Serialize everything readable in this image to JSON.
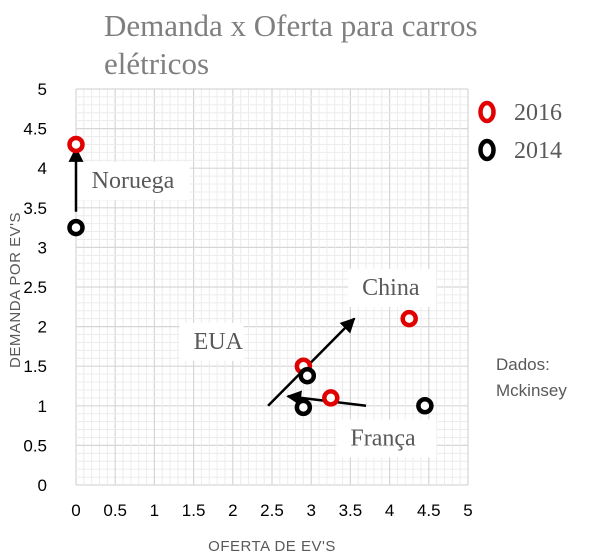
{
  "chart_data": {
    "type": "scatter",
    "title": [
      "Demanda x Oferta para carros",
      "elétricos"
    ],
    "xlabel": "OFERTA DE EV'S",
    "ylabel": "DEMANDA POR EV'S",
    "xlim": [
      0,
      5
    ],
    "ylim": [
      0,
      5
    ],
    "xticks": [
      "0",
      "0.5",
      "1",
      "1.5",
      "2",
      "2.5",
      "3",
      "3.5",
      "4",
      "4.5",
      "5"
    ],
    "yticks": [
      "0",
      "0.5",
      "1",
      "1.5",
      "2",
      "2.5",
      "3",
      "3.5",
      "4",
      "4.5",
      "5"
    ],
    "grid": true,
    "legend_position": "top-right",
    "series": [
      {
        "name": "2016",
        "color": "#e00000",
        "points": [
          {
            "x": 0.0,
            "y": 4.3
          },
          {
            "x": 2.9,
            "y": 1.5
          },
          {
            "x": 3.25,
            "y": 1.1
          },
          {
            "x": 4.25,
            "y": 2.1
          }
        ]
      },
      {
        "name": "2014",
        "color": "#000000",
        "points": [
          {
            "x": 0.0,
            "y": 3.25
          },
          {
            "x": 2.95,
            "y": 1.38
          },
          {
            "x": 2.9,
            "y": 0.98
          },
          {
            "x": 4.45,
            "y": 1.0
          }
        ]
      }
    ],
    "annotations": [
      {
        "text": "Noruega",
        "x": 0.2,
        "y": 3.75,
        "ax": 0.0,
        "ay": 3.45,
        "bx": 0.0,
        "by": 4.25
      },
      {
        "text": "China",
        "x": 3.65,
        "y": 2.4,
        "ax": 2.45,
        "ay": 1.0,
        "bx": 3.55,
        "by": 2.1
      },
      {
        "text": "EUA",
        "x": 1.5,
        "y": 1.72,
        "ax": null,
        "ay": null,
        "bx": null,
        "by": null
      },
      {
        "text": "França",
        "x": 3.5,
        "y": 0.5,
        "ax": 3.7,
        "ay": 1.0,
        "bx": 2.7,
        "by": 1.12
      }
    ],
    "source_note": [
      "Dados:",
      "Mckinsey"
    ]
  }
}
